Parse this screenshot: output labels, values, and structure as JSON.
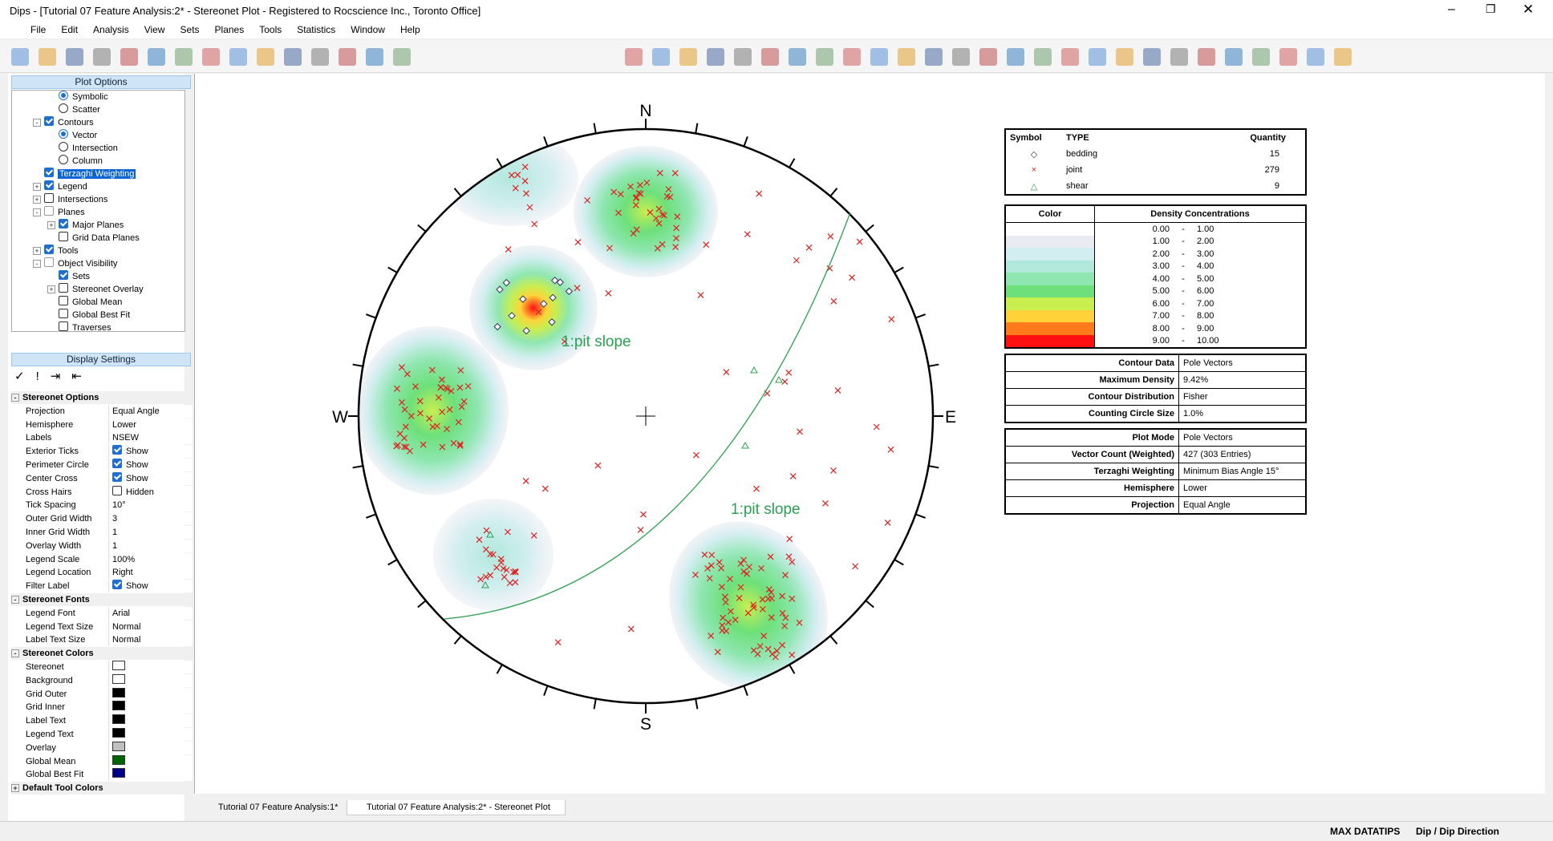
{
  "window": {
    "title": "Dips - [Tutorial 07 Feature Analysis:2* - Stereonet Plot - Registered to Rocscience Inc., Toronto Office]"
  },
  "menu": [
    "File",
    "Edit",
    "Analysis",
    "View",
    "Sets",
    "Planes",
    "Tools",
    "Statistics",
    "Window",
    "Help"
  ],
  "plot_options": {
    "title": "Plot Options",
    "items": [
      {
        "label": "Symbolic",
        "level": 2,
        "control": "radio",
        "checked": true
      },
      {
        "label": "Scatter",
        "level": 2,
        "control": "radio",
        "checked": false
      },
      {
        "label": "Contours",
        "level": 1,
        "control": "check",
        "checked": true,
        "expander": "-"
      },
      {
        "label": "Vector",
        "level": 2,
        "control": "radio",
        "checked": true
      },
      {
        "label": "Intersection",
        "level": 2,
        "control": "radio",
        "checked": false
      },
      {
        "label": "Column",
        "level": 2,
        "control": "radio",
        "checked": false
      },
      {
        "label": "Terzaghi Weighting",
        "level": 1,
        "control": "check",
        "checked": true,
        "selected": true
      },
      {
        "label": "Legend",
        "level": 1,
        "control": "check",
        "checked": true,
        "expander": "+"
      },
      {
        "label": "Intersections",
        "level": 1,
        "control": "check",
        "checked": false,
        "expander": "+"
      },
      {
        "label": "Planes",
        "level": 1,
        "control": "tri",
        "checked": false,
        "expander": "-"
      },
      {
        "label": "Major Planes",
        "level": 2,
        "control": "check",
        "checked": true,
        "expander": "+"
      },
      {
        "label": "Grid Data Planes",
        "level": 2,
        "control": "check",
        "checked": false
      },
      {
        "label": "Tools",
        "level": 1,
        "control": "check",
        "checked": true,
        "expander": "+"
      },
      {
        "label": "Object Visibility",
        "level": 1,
        "control": "tri",
        "checked": false,
        "expander": "-"
      },
      {
        "label": "Sets",
        "level": 2,
        "control": "check",
        "checked": true
      },
      {
        "label": "Stereonet Overlay",
        "level": 2,
        "control": "check",
        "checked": false,
        "expander": "+"
      },
      {
        "label": "Global Mean",
        "level": 2,
        "control": "check",
        "checked": false
      },
      {
        "label": "Global Best Fit",
        "level": 2,
        "control": "check",
        "checked": false
      },
      {
        "label": "Traverses",
        "level": 2,
        "control": "check",
        "checked": false
      }
    ]
  },
  "display_settings": {
    "title": "Display Settings",
    "groups": [
      {
        "name": "Stereonet Options",
        "expander": "-",
        "rows": [
          {
            "label": "Projection",
            "value": "Equal Angle"
          },
          {
            "label": "Hemisphere",
            "value": "Lower"
          },
          {
            "label": "Labels",
            "value": "NSEW"
          },
          {
            "label": "Exterior Ticks",
            "value": "Show",
            "checked": true
          },
          {
            "label": "Perimeter Circle",
            "value": "Show",
            "checked": true
          },
          {
            "label": "Center Cross",
            "value": "Show",
            "checked": true
          },
          {
            "label": "Cross Hairs",
            "value": "Hidden",
            "checked": false
          },
          {
            "label": "Tick Spacing",
            "value": "10°"
          },
          {
            "label": "Outer Grid Width",
            "value": "3"
          },
          {
            "label": "Inner Grid Width",
            "value": "1"
          },
          {
            "label": "Overlay Width",
            "value": "1"
          },
          {
            "label": "Legend Scale",
            "value": "100%"
          },
          {
            "label": "Legend Location",
            "value": "Right"
          },
          {
            "label": "Filter Label",
            "value": "Show",
            "checked": true
          }
        ]
      },
      {
        "name": "Stereonet Fonts",
        "expander": "-",
        "rows": [
          {
            "label": "Legend Font",
            "value": "Arial"
          },
          {
            "label": "Legend Text Size",
            "value": "Normal"
          },
          {
            "label": "Label Text Size",
            "value": "Normal"
          }
        ]
      },
      {
        "name": "Stereonet Colors",
        "expander": "-",
        "rows": [
          {
            "label": "Stereonet",
            "swatch": "#ffffff"
          },
          {
            "label": "Background",
            "swatch": "#ffffff"
          },
          {
            "label": "Grid Outer",
            "swatch": "#000000"
          },
          {
            "label": "Grid Inner",
            "swatch": "#000000"
          },
          {
            "label": "Label Text",
            "swatch": "#000000"
          },
          {
            "label": "Legend Text",
            "swatch": "#000000"
          },
          {
            "label": "Overlay",
            "swatch": "#c0c0c0"
          },
          {
            "label": "Global Mean",
            "swatch": "#006400"
          },
          {
            "label": "Global Best Fit",
            "swatch": "#00008b"
          }
        ]
      },
      {
        "name": "Default Tool Colors",
        "expander": "+",
        "rows": []
      }
    ]
  },
  "stereonet": {
    "directions": {
      "N": "N",
      "E": "E",
      "S": "S",
      "W": "W"
    },
    "labels": [
      "1:pit slope",
      "1:pit slope"
    ]
  },
  "legend": {
    "symbol_table": {
      "headers": [
        "Symbol",
        "TYPE",
        "Quantity"
      ],
      "rows": [
        {
          "symbol": "◇",
          "color": "#333366",
          "type": "bedding",
          "quantity": 15
        },
        {
          "symbol": "×",
          "color": "#e02020",
          "type": "joint",
          "quantity": 279
        },
        {
          "symbol": "△",
          "color": "#2aa050",
          "type": "shear",
          "quantity": 9
        }
      ]
    },
    "density_table": {
      "headers": [
        "Color",
        "Density Concentrations"
      ],
      "rows": [
        {
          "color": "#ffffff",
          "from": "0.00",
          "sep": "-",
          "to": "1.00"
        },
        {
          "color": "#e8ebf2",
          "from": "1.00",
          "sep": "-",
          "to": "2.00"
        },
        {
          "color": "#d2eef0",
          "from": "2.00",
          "sep": "-",
          "to": "3.00"
        },
        {
          "color": "#b2e8dc",
          "from": "3.00",
          "sep": "-",
          "to": "4.00"
        },
        {
          "color": "#8fe6b0",
          "from": "4.00",
          "sep": "-",
          "to": "5.00"
        },
        {
          "color": "#6de07a",
          "from": "5.00",
          "sep": "-",
          "to": "6.00"
        },
        {
          "color": "#c8ee50",
          "from": "6.00",
          "sep": "-",
          "to": "7.00"
        },
        {
          "color": "#ffd23a",
          "from": "7.00",
          "sep": "-",
          "to": "8.00"
        },
        {
          "color": "#ff7a1a",
          "from": "8.00",
          "sep": "-",
          "to": "9.00"
        },
        {
          "color": "#ff1010",
          "from": "9.00",
          "sep": "-",
          "to": "10.00"
        }
      ]
    },
    "info_blocks": [
      [
        {
          "label": "Contour Data",
          "value": "Pole Vectors"
        },
        {
          "label": "Maximum Density",
          "value": "9.42%"
        },
        {
          "label": "Contour Distribution",
          "value": "Fisher"
        },
        {
          "label": "Counting Circle Size",
          "value": "1.0%"
        }
      ],
      [
        {
          "label": "Plot Mode",
          "value": "Pole Vectors"
        },
        {
          "label": "Vector Count (Weighted)",
          "value": "427 (303 Entries)"
        },
        {
          "label": "Terzaghi Weighting",
          "value": "Minimum Bias Angle 15°"
        },
        {
          "label": "Hemisphere",
          "value": "Lower"
        },
        {
          "label": "Projection",
          "value": "Equal Angle"
        }
      ]
    ]
  },
  "tabs": [
    "Tutorial 07 Feature Analysis:1*",
    "Tutorial 07 Feature Analysis:2* - Stereonet Plot"
  ],
  "status": [
    "MAX DATATIPS",
    "Dip / Dip Direction"
  ]
}
